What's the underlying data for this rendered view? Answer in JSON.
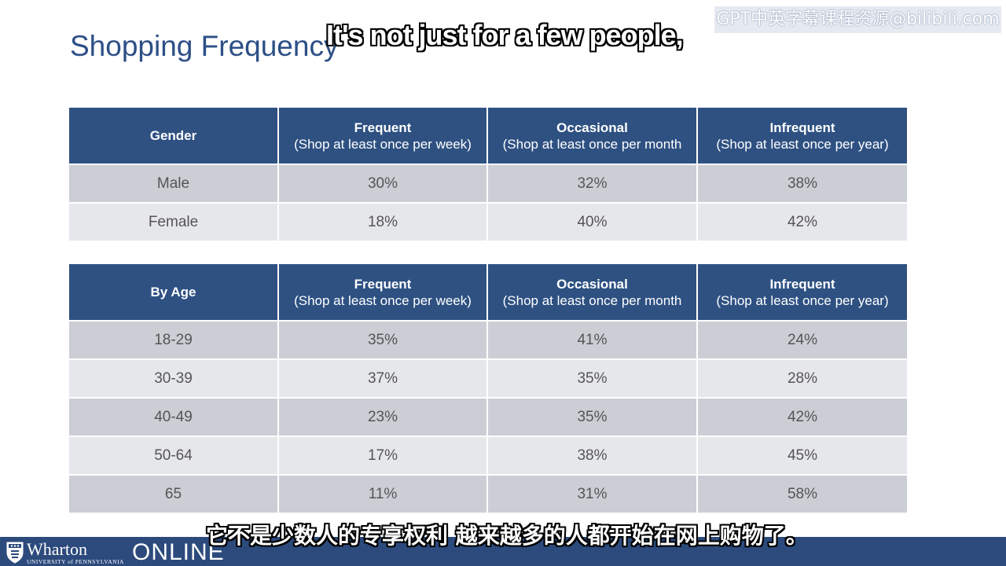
{
  "slide": {
    "title": "Shopping Frequency"
  },
  "watermark": "GPT中英字幕课程资源@bilibili.com",
  "subtitles": {
    "english": "It's not just for a few people,",
    "chinese": "它不是少数人的专享权利 越来越多的人都开始在网上购物了。"
  },
  "gender_table": {
    "headers": [
      {
        "main": "Gender",
        "sub": ""
      },
      {
        "main": "Frequent",
        "sub": "(Shop at least once per week)"
      },
      {
        "main": "Occasional",
        "sub": "(Shop at least once per month"
      },
      {
        "main": "Infrequent",
        "sub": "(Shop at least once per year)"
      }
    ],
    "rows": [
      [
        "Male",
        "30%",
        "32%",
        "38%"
      ],
      [
        "Female",
        "18%",
        "40%",
        "42%"
      ]
    ]
  },
  "age_table": {
    "headers": [
      {
        "main": "By Age",
        "sub": ""
      },
      {
        "main": "Frequent",
        "sub": "(Shop at least once per week)"
      },
      {
        "main": "Occasional",
        "sub": "(Shop at least once per month"
      },
      {
        "main": "Infrequent",
        "sub": "(Shop at least once per year)"
      }
    ],
    "rows": [
      [
        "18-29",
        "35%",
        "41%",
        "24%"
      ],
      [
        "30-39",
        "37%",
        "35%",
        "28%"
      ],
      [
        "40-49",
        "23%",
        "35%",
        "42%"
      ],
      [
        "50-64",
        "17%",
        "38%",
        "45%"
      ],
      [
        "65",
        "11%",
        "31%",
        "58%"
      ]
    ]
  },
  "footer": {
    "logo_name": "Wharton",
    "logo_university": "UNIVERSITY of PENNSYLVANIA",
    "logo_online": "ONLINE",
    "shield_icon": "penn-shield-icon"
  },
  "colors": {
    "title": "#2d4f86",
    "header_bg": "#2e5182",
    "row_dark": "#ccced6",
    "row_light": "#e6e7eb",
    "footer_bg": "#2c4a7c"
  }
}
